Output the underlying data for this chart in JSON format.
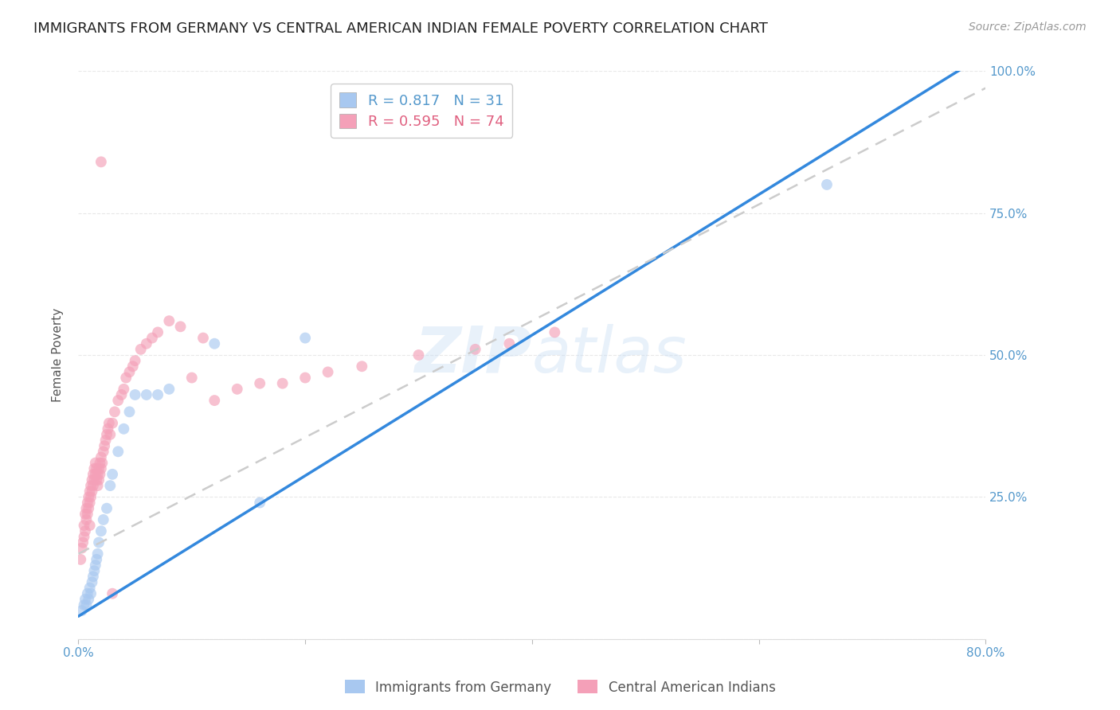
{
  "title": "IMMIGRANTS FROM GERMANY VS CENTRAL AMERICAN INDIAN FEMALE POVERTY CORRELATION CHART",
  "source": "Source: ZipAtlas.com",
  "ylabel": "Female Poverty",
  "watermark": "ZIPatlas",
  "xlim": [
    0.0,
    0.8
  ],
  "ylim": [
    0.0,
    1.0
  ],
  "legend_entries": [
    {
      "label": "Immigrants from Germany",
      "R": "0.817",
      "N": "31",
      "color": "#a8c8f0"
    },
    {
      "label": "Central American Indians",
      "R": "0.595",
      "N": "74",
      "color": "#f4a0b8"
    }
  ],
  "blue_scatter_x": [
    0.003,
    0.005,
    0.006,
    0.007,
    0.008,
    0.009,
    0.01,
    0.011,
    0.012,
    0.013,
    0.014,
    0.015,
    0.016,
    0.017,
    0.018,
    0.02,
    0.022,
    0.025,
    0.028,
    0.03,
    0.035,
    0.04,
    0.045,
    0.05,
    0.06,
    0.07,
    0.08,
    0.12,
    0.16,
    0.2,
    0.66
  ],
  "blue_scatter_y": [
    0.05,
    0.06,
    0.07,
    0.06,
    0.08,
    0.07,
    0.09,
    0.08,
    0.1,
    0.11,
    0.12,
    0.13,
    0.14,
    0.15,
    0.17,
    0.19,
    0.21,
    0.23,
    0.27,
    0.29,
    0.33,
    0.37,
    0.4,
    0.43,
    0.43,
    0.43,
    0.44,
    0.52,
    0.24,
    0.53,
    0.8
  ],
  "pink_scatter_x": [
    0.002,
    0.003,
    0.004,
    0.005,
    0.005,
    0.006,
    0.006,
    0.007,
    0.007,
    0.008,
    0.008,
    0.009,
    0.009,
    0.01,
    0.01,
    0.01,
    0.011,
    0.011,
    0.012,
    0.012,
    0.013,
    0.013,
    0.014,
    0.014,
    0.015,
    0.015,
    0.016,
    0.016,
    0.017,
    0.017,
    0.018,
    0.018,
    0.019,
    0.019,
    0.02,
    0.02,
    0.021,
    0.022,
    0.023,
    0.024,
    0.025,
    0.026,
    0.027,
    0.028,
    0.03,
    0.032,
    0.035,
    0.038,
    0.04,
    0.042,
    0.045,
    0.048,
    0.05,
    0.055,
    0.06,
    0.065,
    0.07,
    0.08,
    0.09,
    0.1,
    0.11,
    0.12,
    0.14,
    0.16,
    0.18,
    0.2,
    0.22,
    0.25,
    0.3,
    0.35,
    0.38,
    0.42,
    0.02,
    0.03
  ],
  "pink_scatter_y": [
    0.14,
    0.16,
    0.17,
    0.18,
    0.2,
    0.19,
    0.22,
    0.21,
    0.23,
    0.22,
    0.24,
    0.23,
    0.25,
    0.24,
    0.26,
    0.2,
    0.25,
    0.27,
    0.26,
    0.28,
    0.27,
    0.29,
    0.28,
    0.3,
    0.29,
    0.31,
    0.28,
    0.3,
    0.27,
    0.29,
    0.28,
    0.3,
    0.29,
    0.31,
    0.3,
    0.32,
    0.31,
    0.33,
    0.34,
    0.35,
    0.36,
    0.37,
    0.38,
    0.36,
    0.38,
    0.4,
    0.42,
    0.43,
    0.44,
    0.46,
    0.47,
    0.48,
    0.49,
    0.51,
    0.52,
    0.53,
    0.54,
    0.56,
    0.55,
    0.46,
    0.53,
    0.42,
    0.44,
    0.45,
    0.45,
    0.46,
    0.47,
    0.48,
    0.5,
    0.51,
    0.52,
    0.54,
    0.84,
    0.08
  ],
  "blue_line_x": [
    0.0,
    0.8
  ],
  "blue_line_y": [
    0.04,
    1.03
  ],
  "pink_line_x": [
    0.0,
    0.8
  ],
  "pink_line_y": [
    0.15,
    0.97
  ],
  "scatter_color_blue": "#a8c8f0",
  "scatter_color_pink": "#f4a0b8",
  "line_color_blue": "#3388dd",
  "line_color_pink": "#cccccc",
  "grid_color": "#e8e8e8",
  "axis_tick_color": "#5599cc",
  "background_color": "#ffffff",
  "title_fontsize": 13,
  "source_fontsize": 10,
  "ylabel_fontsize": 11,
  "scatter_size": 100,
  "scatter_alpha": 0.65
}
